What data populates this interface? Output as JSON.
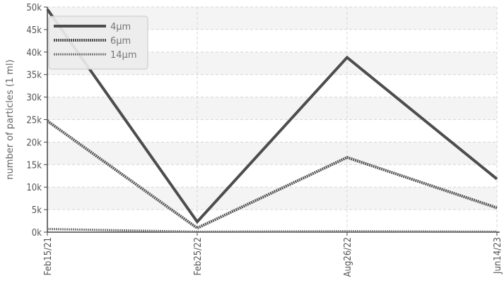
{
  "chart_data": {
    "type": "line",
    "ylabel": "number of particles (1 ml)",
    "xlabel": "",
    "categories": [
      "Feb15/21",
      "Feb25/22",
      "Aug26/22",
      "Jun14/23"
    ],
    "ylim": [
      0,
      50000
    ],
    "yticks": [
      {
        "value": 0,
        "label": "0k"
      },
      {
        "value": 5000,
        "label": "5k"
      },
      {
        "value": 10000,
        "label": "10k"
      },
      {
        "value": 15000,
        "label": "15k"
      },
      {
        "value": 20000,
        "label": "20k"
      },
      {
        "value": 25000,
        "label": "25k"
      },
      {
        "value": 30000,
        "label": "30k"
      },
      {
        "value": 35000,
        "label": "35k"
      },
      {
        "value": 40000,
        "label": "40k"
      },
      {
        "value": 45000,
        "label": "45k"
      },
      {
        "value": 50000,
        "label": "50k"
      }
    ],
    "grid": true,
    "legend_position": "top-left",
    "series": [
      {
        "name": "4μm",
        "values": [
          49500,
          2300,
          38800,
          11800
        ],
        "color": "#4d4d4d",
        "style": "solid"
      },
      {
        "name": "6μm",
        "values": [
          24700,
          900,
          16600,
          5400
        ],
        "color": "#555555",
        "style": "dotted"
      },
      {
        "name": "14μm",
        "values": [
          700,
          100,
          200,
          100
        ],
        "color": "#7a7a7a",
        "style": "dotted"
      }
    ]
  }
}
